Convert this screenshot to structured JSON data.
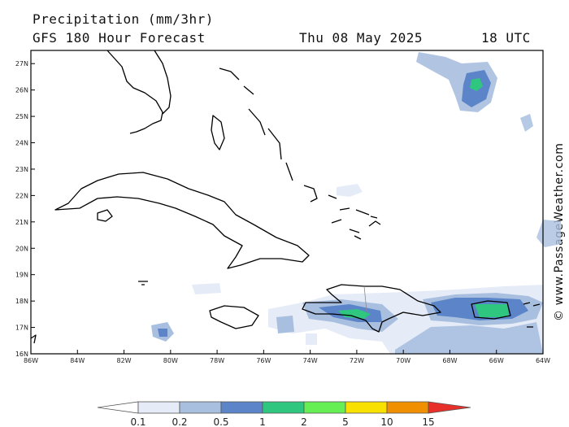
{
  "header": {
    "title": "Precipitation (mm/3hr)",
    "subtitle": "GFS 180 Hour Forecast",
    "date": "Thu 08 May 2025",
    "time": "18 UTC"
  },
  "credit": "© www.PassageWeather.com",
  "map": {
    "lat_range": [
      16,
      27.5
    ],
    "lon_range": [
      -86,
      -64
    ],
    "lat_labels": [
      "16N",
      "17N",
      "18N",
      "19N",
      "20N",
      "21N",
      "22N",
      "23N",
      "24N",
      "25N",
      "26N",
      "27N"
    ],
    "lat_values": [
      16,
      17,
      18,
      19,
      20,
      21,
      22,
      23,
      24,
      25,
      26,
      27
    ],
    "lon_labels": [
      "86W",
      "84W",
      "82W",
      "80W",
      "78W",
      "76W",
      "74W",
      "72W",
      "70W",
      "68W",
      "66W",
      "64W"
    ],
    "lon_values": [
      -86,
      -84,
      -82,
      -80,
      -78,
      -76,
      -74,
      -72,
      -70,
      -68,
      -66,
      -64
    ]
  },
  "legend": {
    "labels": [
      "0.1",
      "0.2",
      "0.5",
      "1",
      "2",
      "5",
      "10",
      "15"
    ],
    "colors": [
      "#ffffff",
      "#e6ecf7",
      "#a9bfe0",
      "#5b85c8",
      "#2fc77f",
      "#66ee55",
      "#f8e000",
      "#f09000",
      "#e8302a"
    ]
  }
}
